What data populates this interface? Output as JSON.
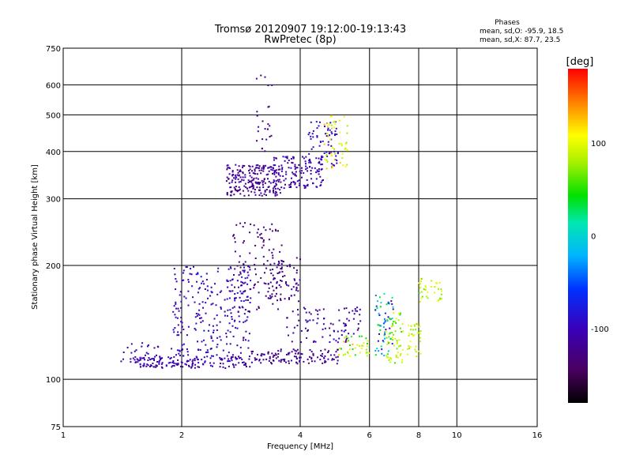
{
  "figure": {
    "title_line1": "Tromsø 20120907 19:12:00-19:13:43",
    "title_line2": "RwPretec (8p)",
    "stats_title": "Phases",
    "stats_line1": "mean, sd,O: -95.9, 18.5",
    "stats_line2": "mean, sd,X:  87.7, 23.5",
    "colorbar_unit": "[deg]",
    "colorbar_ticks": [
      {
        "value": 100,
        "label": "100"
      },
      {
        "value": 0,
        "label": "0"
      },
      {
        "value": -100,
        "label": "-100"
      }
    ],
    "colorbar_range": [
      -180,
      180
    ]
  },
  "chart_data": {
    "type": "scatter",
    "title": "Tromsø 20120907 19:12:00-19:13:43",
    "subtitle": "RwPretec (8p)",
    "xlabel": "Frequency [MHz]",
    "ylabel": "Stationary phase Virtual Height [km]",
    "x_scale": "log",
    "y_scale": "log",
    "xlim": [
      1,
      16
    ],
    "ylim": [
      75,
      750
    ],
    "grid": true,
    "x_ticks": [
      {
        "value": 1,
        "label": "1"
      },
      {
        "value": 2,
        "label": "2"
      },
      {
        "value": 4,
        "label": "4"
      },
      {
        "value": 6,
        "label": "6"
      },
      {
        "value": 8,
        "label": "8"
      },
      {
        "value": 10,
        "label": "10"
      },
      {
        "value": 16,
        "label": "16"
      }
    ],
    "y_ticks": [
      {
        "value": 75,
        "label": "75"
      },
      {
        "value": 100,
        "label": "100"
      },
      {
        "value": 200,
        "label": "200"
      },
      {
        "value": 300,
        "label": "300"
      },
      {
        "value": 400,
        "label": "400"
      },
      {
        "value": 500,
        "label": "500"
      },
      {
        "value": 600,
        "label": "600"
      },
      {
        "value": 750,
        "label": "750"
      }
    ],
    "color_variable": "phase [deg]",
    "clusters": [
      {
        "x_range": [
          1.5,
          3.0
        ],
        "y_range": [
          107,
          115
        ],
        "count": 160,
        "phase_range": [
          -120,
          -95
        ]
      },
      {
        "x_range": [
          3.0,
          5.0
        ],
        "y_range": [
          110,
          120
        ],
        "count": 120,
        "phase_range": [
          -135,
          -105
        ]
      },
      {
        "x_range": [
          5.0,
          6.0
        ],
        "y_range": [
          115,
          130
        ],
        "count": 40,
        "phase_range": [
          40,
          130
        ]
      },
      {
        "x_range": [
          1.9,
          3.0
        ],
        "y_range": [
          115,
          200
        ],
        "count": 260,
        "phase_range": [
          -120,
          -80
        ]
      },
      {
        "x_range": [
          2.7,
          3.6
        ],
        "y_range": [
          150,
          260
        ],
        "count": 110,
        "phase_range": [
          -140,
          -115
        ]
      },
      {
        "x_range": [
          3.3,
          4.0
        ],
        "y_range": [
          160,
          210
        ],
        "count": 70,
        "phase_range": [
          -135,
          -110
        ]
      },
      {
        "x_range": [
          3.7,
          5.7
        ],
        "y_range": [
          125,
          155
        ],
        "count": 90,
        "phase_range": [
          -130,
          -90
        ]
      },
      {
        "x_range": [
          1.4,
          1.9
        ],
        "y_range": [
          110,
          125
        ],
        "count": 30,
        "phase_range": [
          -115,
          -95
        ]
      },
      {
        "x_range": [
          2.6,
          3.6
        ],
        "y_range": [
          305,
          370
        ],
        "count": 220,
        "phase_range": [
          -135,
          -105
        ]
      },
      {
        "x_range": [
          3.4,
          4.6
        ],
        "y_range": [
          320,
          390
        ],
        "count": 130,
        "phase_range": [
          -120,
          -95
        ]
      },
      {
        "x_range": [
          4.2,
          5.0
        ],
        "y_range": [
          360,
          480
        ],
        "count": 70,
        "phase_range": [
          -110,
          -80
        ]
      },
      {
        "x_range": [
          4.6,
          5.3
        ],
        "y_range": [
          360,
          500
        ],
        "count": 50,
        "phase_range": [
          70,
          130
        ]
      },
      {
        "x_range": [
          3.1,
          3.4
        ],
        "y_range": [
          400,
          650
        ],
        "count": 25,
        "phase_range": [
          -135,
          -110
        ]
      },
      {
        "x_range": [
          6.2,
          6.9
        ],
        "y_range": [
          115,
          170
        ],
        "count": 60,
        "phase_range": [
          -130,
          60
        ]
      },
      {
        "x_range": [
          6.6,
          7.3
        ],
        "y_range": [
          110,
          150
        ],
        "count": 60,
        "phase_range": [
          50,
          110
        ]
      },
      {
        "x_range": [
          7.5,
          8.1
        ],
        "y_range": [
          115,
          140
        ],
        "count": 35,
        "phase_range": [
          70,
          110
        ]
      },
      {
        "x_range": [
          8.0,
          9.2
        ],
        "y_range": [
          160,
          185
        ],
        "count": 35,
        "phase_range": [
          60,
          110
        ]
      }
    ]
  }
}
